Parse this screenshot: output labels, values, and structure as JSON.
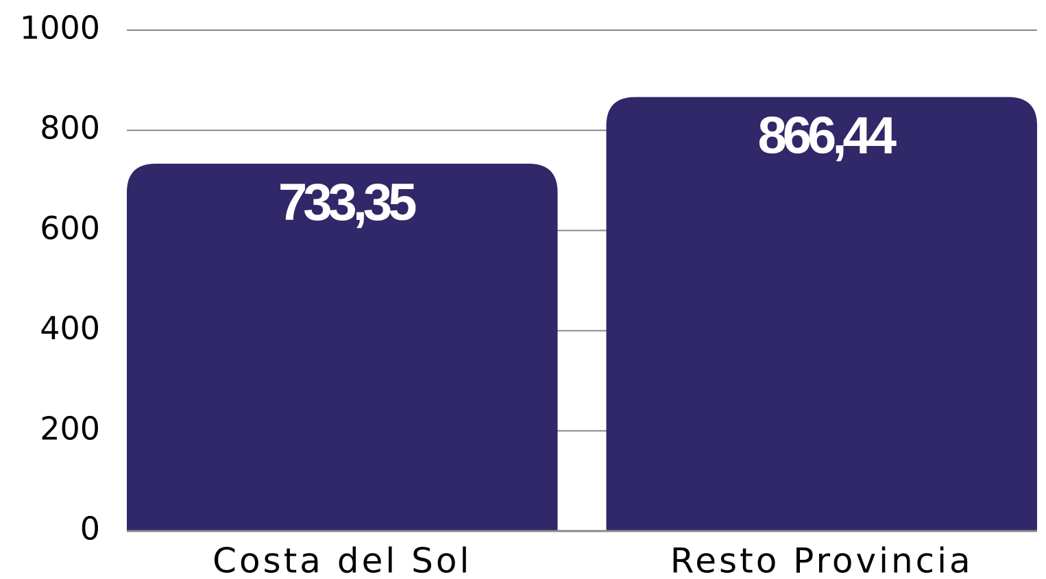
{
  "chart_data": {
    "type": "bar",
    "categories": [
      "Costa del Sol",
      "Resto Provincia"
    ],
    "values": [
      733.35,
      866.44
    ],
    "value_labels": [
      "733,35",
      "866,44"
    ],
    "color": "#302868",
    "ylim": [
      0,
      1000
    ],
    "yticks": [
      0,
      200,
      400,
      600,
      800,
      1000
    ],
    "grid": true
  }
}
